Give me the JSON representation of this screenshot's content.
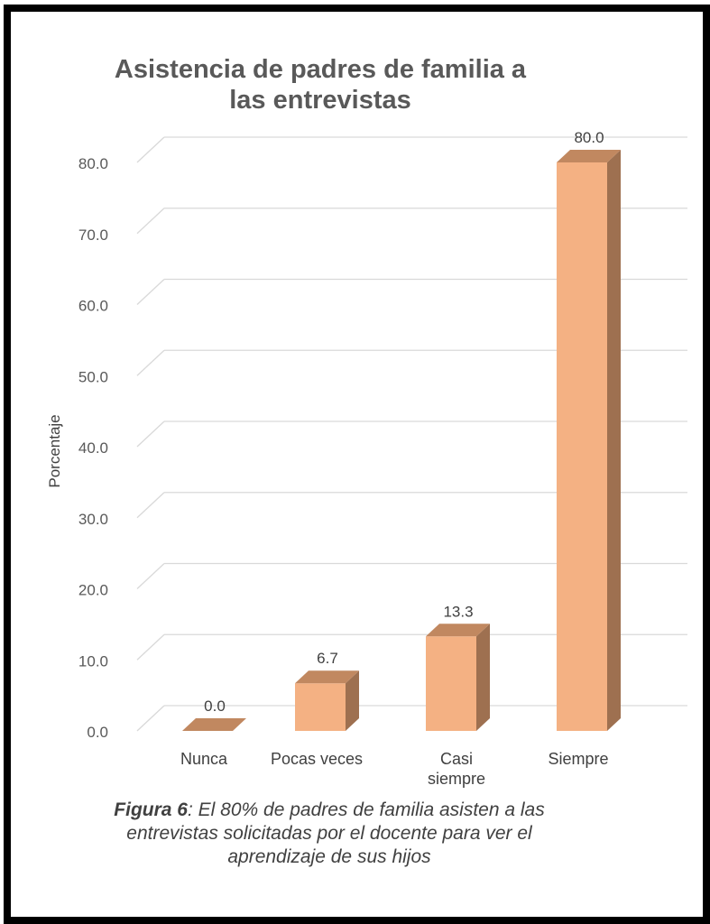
{
  "chart_data": {
    "type": "bar",
    "title": "Asistencia de padres de familia a las entrevistas",
    "ylabel": "Porcentaje",
    "xlabel": "",
    "categories": [
      "Nunca",
      "Pocas veces",
      "Casi siempre",
      "Siempre"
    ],
    "values": [
      0.0,
      6.7,
      13.3,
      80.0
    ],
    "data_labels": [
      "0.0",
      "6.7",
      "13.3",
      "80.0"
    ],
    "ylim": [
      0,
      80
    ],
    "yticks": [
      "0.0",
      "10.0",
      "20.0",
      "30.0",
      "40.0",
      "50.0",
      "60.0",
      "70.0",
      "80.0"
    ],
    "grid": true,
    "legend": "none",
    "style": "3d-column",
    "colors": {
      "front": "#f4b183",
      "side": "#9e7050",
      "top": "#c18860",
      "grid": "#d9d9d9",
      "text": "#595959"
    }
  },
  "caption": {
    "label": "Figura 6",
    "text": ": El 80% de padres de familia asisten a las entrevistas solicitadas por el docente para ver el aprendizaje de sus hijos"
  }
}
